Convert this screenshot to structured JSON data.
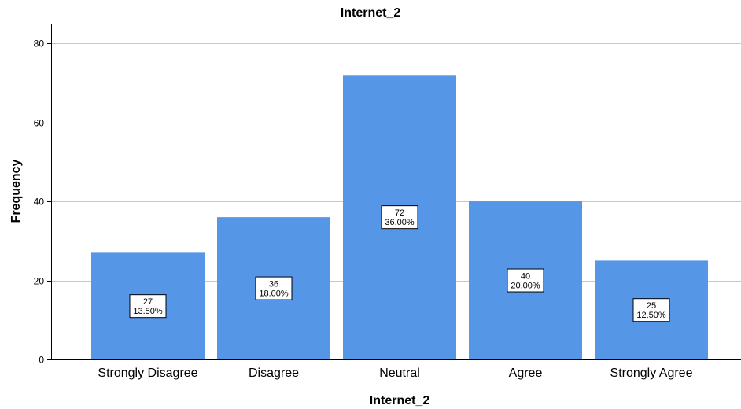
{
  "chart_data": {
    "type": "bar",
    "title": "Internet_2",
    "xlabel": "Internet_2",
    "ylabel": "Frequency",
    "categories": [
      "Strongly Disagree",
      "Disagree",
      "Neutral",
      "Agree",
      "Strongly Agree"
    ],
    "values": [
      27,
      36,
      72,
      40,
      25
    ],
    "percent_labels": [
      "13.50%",
      "18.00%",
      "36.00%",
      "20.00%",
      "12.50%"
    ],
    "ylim": [
      0,
      85
    ],
    "yticks": [
      0,
      20,
      40,
      60,
      80
    ],
    "grid": true,
    "bar_color": "#5596e6",
    "background": "#ffffff"
  }
}
